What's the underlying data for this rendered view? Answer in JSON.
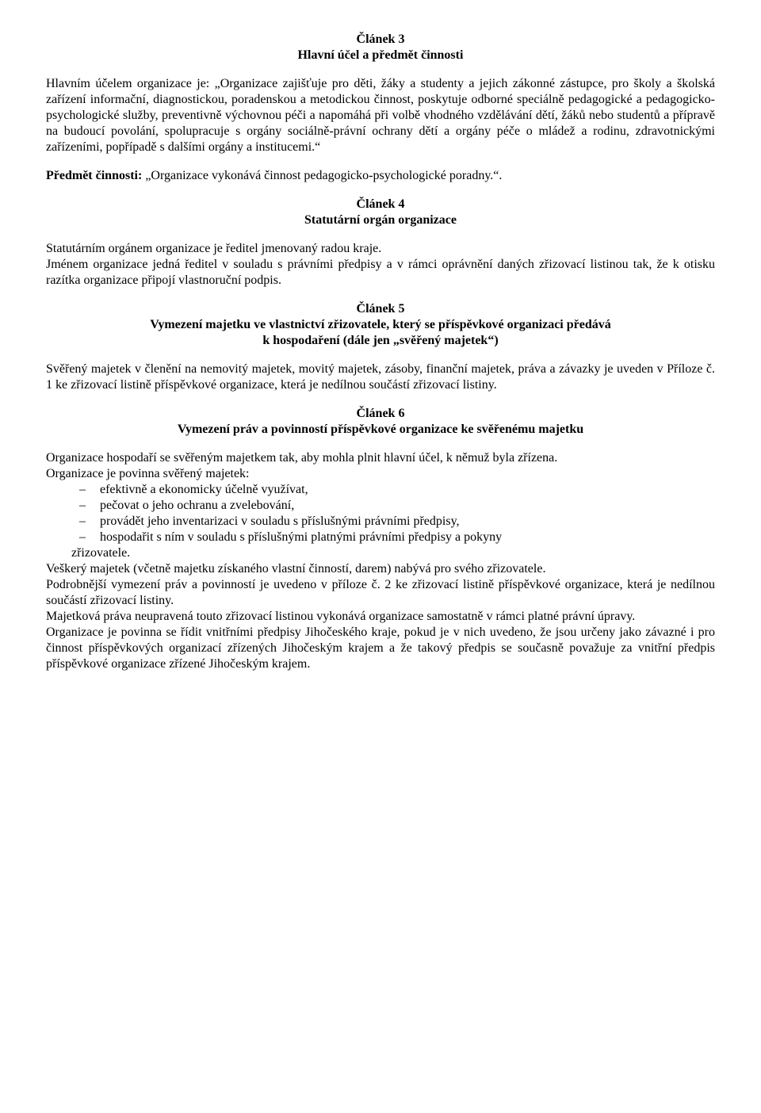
{
  "article3": {
    "heading": "Článek 3",
    "subtitle": "Hlavní účel a předmět činnosti",
    "p1": "Hlavním účelem organizace je: „Organizace zajišťuje pro děti, žáky a studenty a jejich zákonné zástupce, pro školy a školská zařízení informační, diagnostickou, poradenskou a metodickou činnost, poskytuje odborné speciálně pedagogické a pedagogicko-psychologické služby, preventivně výchovnou péči a napomáhá při volbě vhodného vzdělávání dětí, žáků nebo studentů a přípravě na budoucí povolání, spolupracuje s orgány sociálně-právní ochrany dětí a orgány péče o mládež a rodinu, zdravotnickými zařízeními, popřípadě s dalšími orgány a institucemi.“",
    "p2_label": "Předmět činnosti:",
    "p2_rest": " „Organizace vykonává činnost pedagogicko-psychologické poradny.“."
  },
  "article4": {
    "heading": "Článek 4",
    "subtitle": "Statutární orgán organizace",
    "p1": "Statutárním orgánem organizace je ředitel jmenovaný radou kraje.",
    "p2": "Jménem organizace jedná ředitel v souladu s právními předpisy a v rámci oprávnění daných zřizovací listinou tak, že k otisku razítka organizace připojí vlastnoruční podpis."
  },
  "article5": {
    "heading": "Článek 5",
    "subtitle_line1": "Vymezení majetku ve vlastnictví zřizovatele, který se příspěvkové organizaci předává",
    "subtitle_line2": "k hospodaření (dále jen „svěřený majetek“)",
    "p1": "Svěřený majetek v členění na nemovitý majetek, movitý majetek, zásoby, finanční majetek, práva a závazky je uveden v Příloze č. 1 ke zřizovací listině příspěvkové organizace, která je nedílnou součástí zřizovací listiny."
  },
  "article6": {
    "heading": "Článek 6",
    "subtitle": "Vymezení práv a povinností příspěvkové organizace ke svěřenému majetku",
    "p1": "Organizace hospodaří se svěřeným majetkem tak, aby mohla plnit hlavní účel, k němuž byla zřízena.",
    "p2": "Organizace je povinna svěřený majetek:",
    "bullets": [
      "efektivně a ekonomicky účelně využívat,",
      "pečovat o jeho ochranu a zvelebování,",
      "provádět jeho inventarizaci v souladu s příslušnými právními předpisy,",
      "hospodařit s ním v souladu s příslušnými platnými právními předpisy a pokyny"
    ],
    "bullets_tail": "zřizovatele.",
    "p3": "Veškerý majetek (včetně majetku získaného vlastní činností, darem) nabývá pro svého zřizovatele.",
    "p4": "Podrobnější vymezení práv a povinností je uvedeno v příloze č. 2 ke zřizovací listině příspěvkové organizace, která je nedílnou součástí zřizovací listiny.",
    "p5": "Majetková práva neupravená touto zřizovací listinou vykonává organizace samostatně v rámci platné právní úpravy.",
    "p6": "Organizace je povinna se řídit vnitřními předpisy Jihočeského kraje, pokud je v nich uvedeno, že jsou určeny jako závazné i pro činnost příspěvkových organizací zřízených Jihočeským krajem a že takový předpis se současně považuje za vnitřní předpis příspěvkové organizace zřízené Jihočeským krajem."
  }
}
